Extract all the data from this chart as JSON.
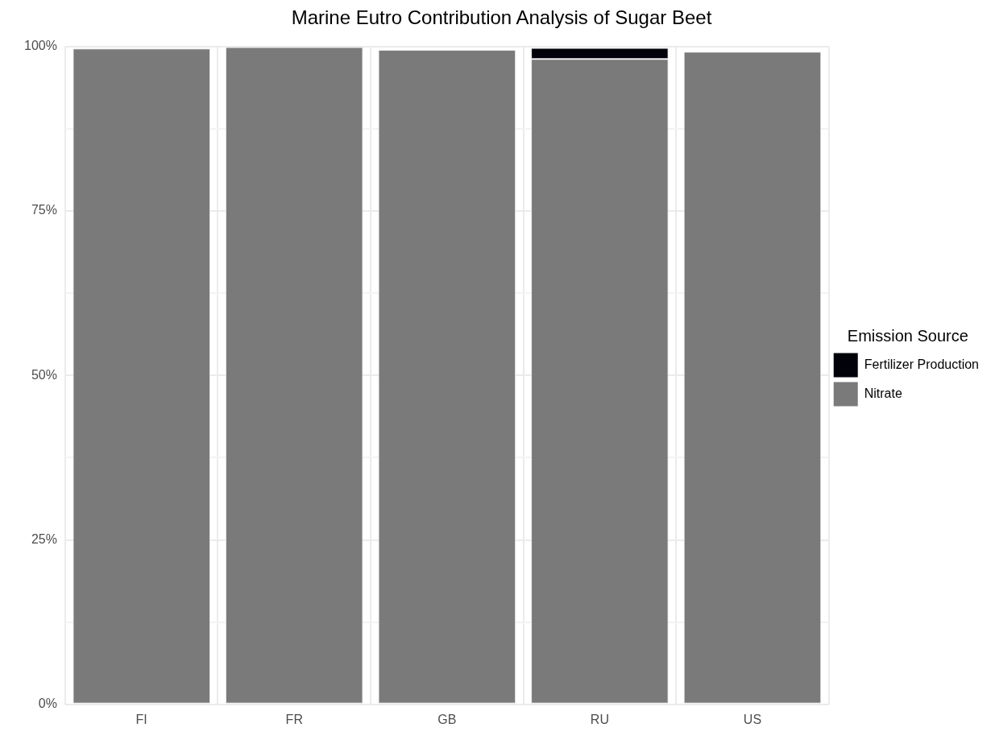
{
  "chart_data": {
    "type": "bar",
    "title": "Marine Eutro Contribution Analysis of Sugar Beet",
    "legend_title": "Emission Source",
    "categories": [
      "FI",
      "FR",
      "GB",
      "RU",
      "US"
    ],
    "series": [
      {
        "name": "Nitrate",
        "color": "#7a7a7a",
        "values": [
          99.7,
          99.9,
          99.5,
          98.1,
          99.2
        ]
      },
      {
        "name": "Fertilizer Production",
        "color": "#02030a",
        "values": [
          null,
          null,
          null,
          1.7,
          null
        ]
      }
    ],
    "stacked": true,
    "ylim": [
      0,
      100
    ],
    "yticks": [
      {
        "value": 0,
        "label": "0%"
      },
      {
        "value": 12.5,
        "label": null
      },
      {
        "value": 25,
        "label": "25%"
      },
      {
        "value": 37.5,
        "label": null
      },
      {
        "value": 50,
        "label": "50%"
      },
      {
        "value": 62.5,
        "label": null
      },
      {
        "value": 75,
        "label": "75%"
      },
      {
        "value": 87.5,
        "label": null
      },
      {
        "value": 100,
        "label": "100%"
      }
    ],
    "grid": true,
    "legend": "right"
  }
}
